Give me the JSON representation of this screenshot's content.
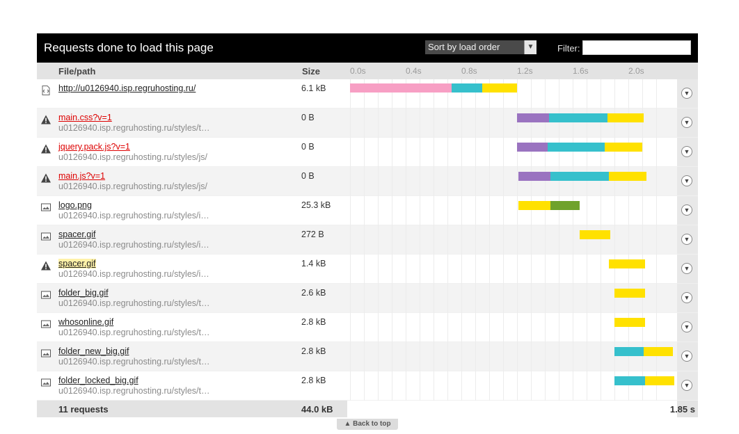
{
  "header": {
    "title": "Requests done to load this page",
    "sort_label": "Sort by load order",
    "filter_label": "Filter:",
    "filter_value": ""
  },
  "columns": {
    "file": "File/path",
    "size": "Size",
    "ticks": [
      "0.0s",
      "0.4s",
      "0.8s",
      "1.2s",
      "1.6s",
      "2.0s"
    ]
  },
  "colors": {
    "blocking": "#f79fc4",
    "waiting": "#9a73c0",
    "connecting": "#36c0cc",
    "receiving": "#ffe100",
    "cache": "#6fa22c"
  },
  "requests": [
    {
      "name": "http://u0126940.isp.regruhosting.ru/",
      "path": "",
      "size": "6.1 kB",
      "icon": "document-icon",
      "status": "ok",
      "timing": [
        {
          "phase": "blocking",
          "start": 0.0,
          "end": 0.73
        },
        {
          "phase": "connecting",
          "start": 0.73,
          "end": 0.95
        },
        {
          "phase": "receiving",
          "start": 0.95,
          "end": 1.2
        }
      ]
    },
    {
      "name": "main.css?v=1",
      "path": "u0126940.isp.regruhosting.ru/styles/t…",
      "size": "0 B",
      "icon": "warning-icon",
      "status": "error",
      "timing": [
        {
          "phase": "waiting",
          "start": 1.2,
          "end": 1.43
        },
        {
          "phase": "connecting",
          "start": 1.43,
          "end": 1.85
        },
        {
          "phase": "receiving",
          "start": 1.85,
          "end": 2.11
        }
      ]
    },
    {
      "name": "jquery.pack.js?v=1",
      "path": "u0126940.isp.regruhosting.ru/styles/js/",
      "size": "0 B",
      "icon": "warning-icon",
      "status": "error",
      "timing": [
        {
          "phase": "waiting",
          "start": 1.2,
          "end": 1.42
        },
        {
          "phase": "connecting",
          "start": 1.42,
          "end": 1.83
        },
        {
          "phase": "receiving",
          "start": 1.83,
          "end": 2.1
        }
      ]
    },
    {
      "name": "main.js?v=1",
      "path": "u0126940.isp.regruhosting.ru/styles/js/",
      "size": "0 B",
      "icon": "warning-icon",
      "status": "error",
      "timing": [
        {
          "phase": "waiting",
          "start": 1.21,
          "end": 1.44
        },
        {
          "phase": "connecting",
          "start": 1.44,
          "end": 1.86
        },
        {
          "phase": "receiving",
          "start": 1.86,
          "end": 2.13
        }
      ]
    },
    {
      "name": "logo.png",
      "path": "u0126940.isp.regruhosting.ru/styles/i…",
      "size": "25.3 kB",
      "icon": "image-icon",
      "status": "ok",
      "timing": [
        {
          "phase": "receiving",
          "start": 1.21,
          "end": 1.44
        },
        {
          "phase": "cache",
          "start": 1.44,
          "end": 1.65
        }
      ]
    },
    {
      "name": "spacer.gif",
      "path": "u0126940.isp.regruhosting.ru/styles/i…",
      "size": "272 B",
      "icon": "image-icon",
      "status": "ok",
      "timing": [
        {
          "phase": "receiving",
          "start": 1.65,
          "end": 1.87
        }
      ]
    },
    {
      "name": "spacer.gif",
      "path": "u0126940.isp.regruhosting.ru/styles/i…",
      "size": "1.4 kB",
      "icon": "warning-icon",
      "status": "highlight",
      "timing": [
        {
          "phase": "receiving",
          "start": 1.86,
          "end": 2.12
        }
      ]
    },
    {
      "name": "folder_big.gif",
      "path": "u0126940.isp.regruhosting.ru/styles/t…",
      "size": "2.6 kB",
      "icon": "image-icon",
      "status": "ok",
      "timing": [
        {
          "phase": "receiving",
          "start": 1.9,
          "end": 2.12
        }
      ]
    },
    {
      "name": "whosonline.gif",
      "path": "u0126940.isp.regruhosting.ru/styles/t…",
      "size": "2.8 kB",
      "icon": "image-icon",
      "status": "ok",
      "timing": [
        {
          "phase": "receiving",
          "start": 1.9,
          "end": 2.12
        }
      ]
    },
    {
      "name": "folder_new_big.gif",
      "path": "u0126940.isp.regruhosting.ru/styles/t…",
      "size": "2.8 kB",
      "icon": "image-icon",
      "status": "ok",
      "timing": [
        {
          "phase": "connecting",
          "start": 1.9,
          "end": 2.11
        },
        {
          "phase": "receiving",
          "start": 2.11,
          "end": 2.32
        }
      ]
    },
    {
      "name": "folder_locked_big.gif",
      "path": "u0126940.isp.regruhosting.ru/styles/t…",
      "size": "2.8 kB",
      "icon": "image-icon",
      "status": "ok",
      "timing": [
        {
          "phase": "connecting",
          "start": 1.9,
          "end": 2.12
        },
        {
          "phase": "receiving",
          "start": 2.12,
          "end": 2.33
        }
      ]
    }
  ],
  "footer": {
    "count": "11 requests",
    "total_size": "44.0 kB",
    "total_time": "1.85 s"
  },
  "back_to_top": "▲ Back to top"
}
